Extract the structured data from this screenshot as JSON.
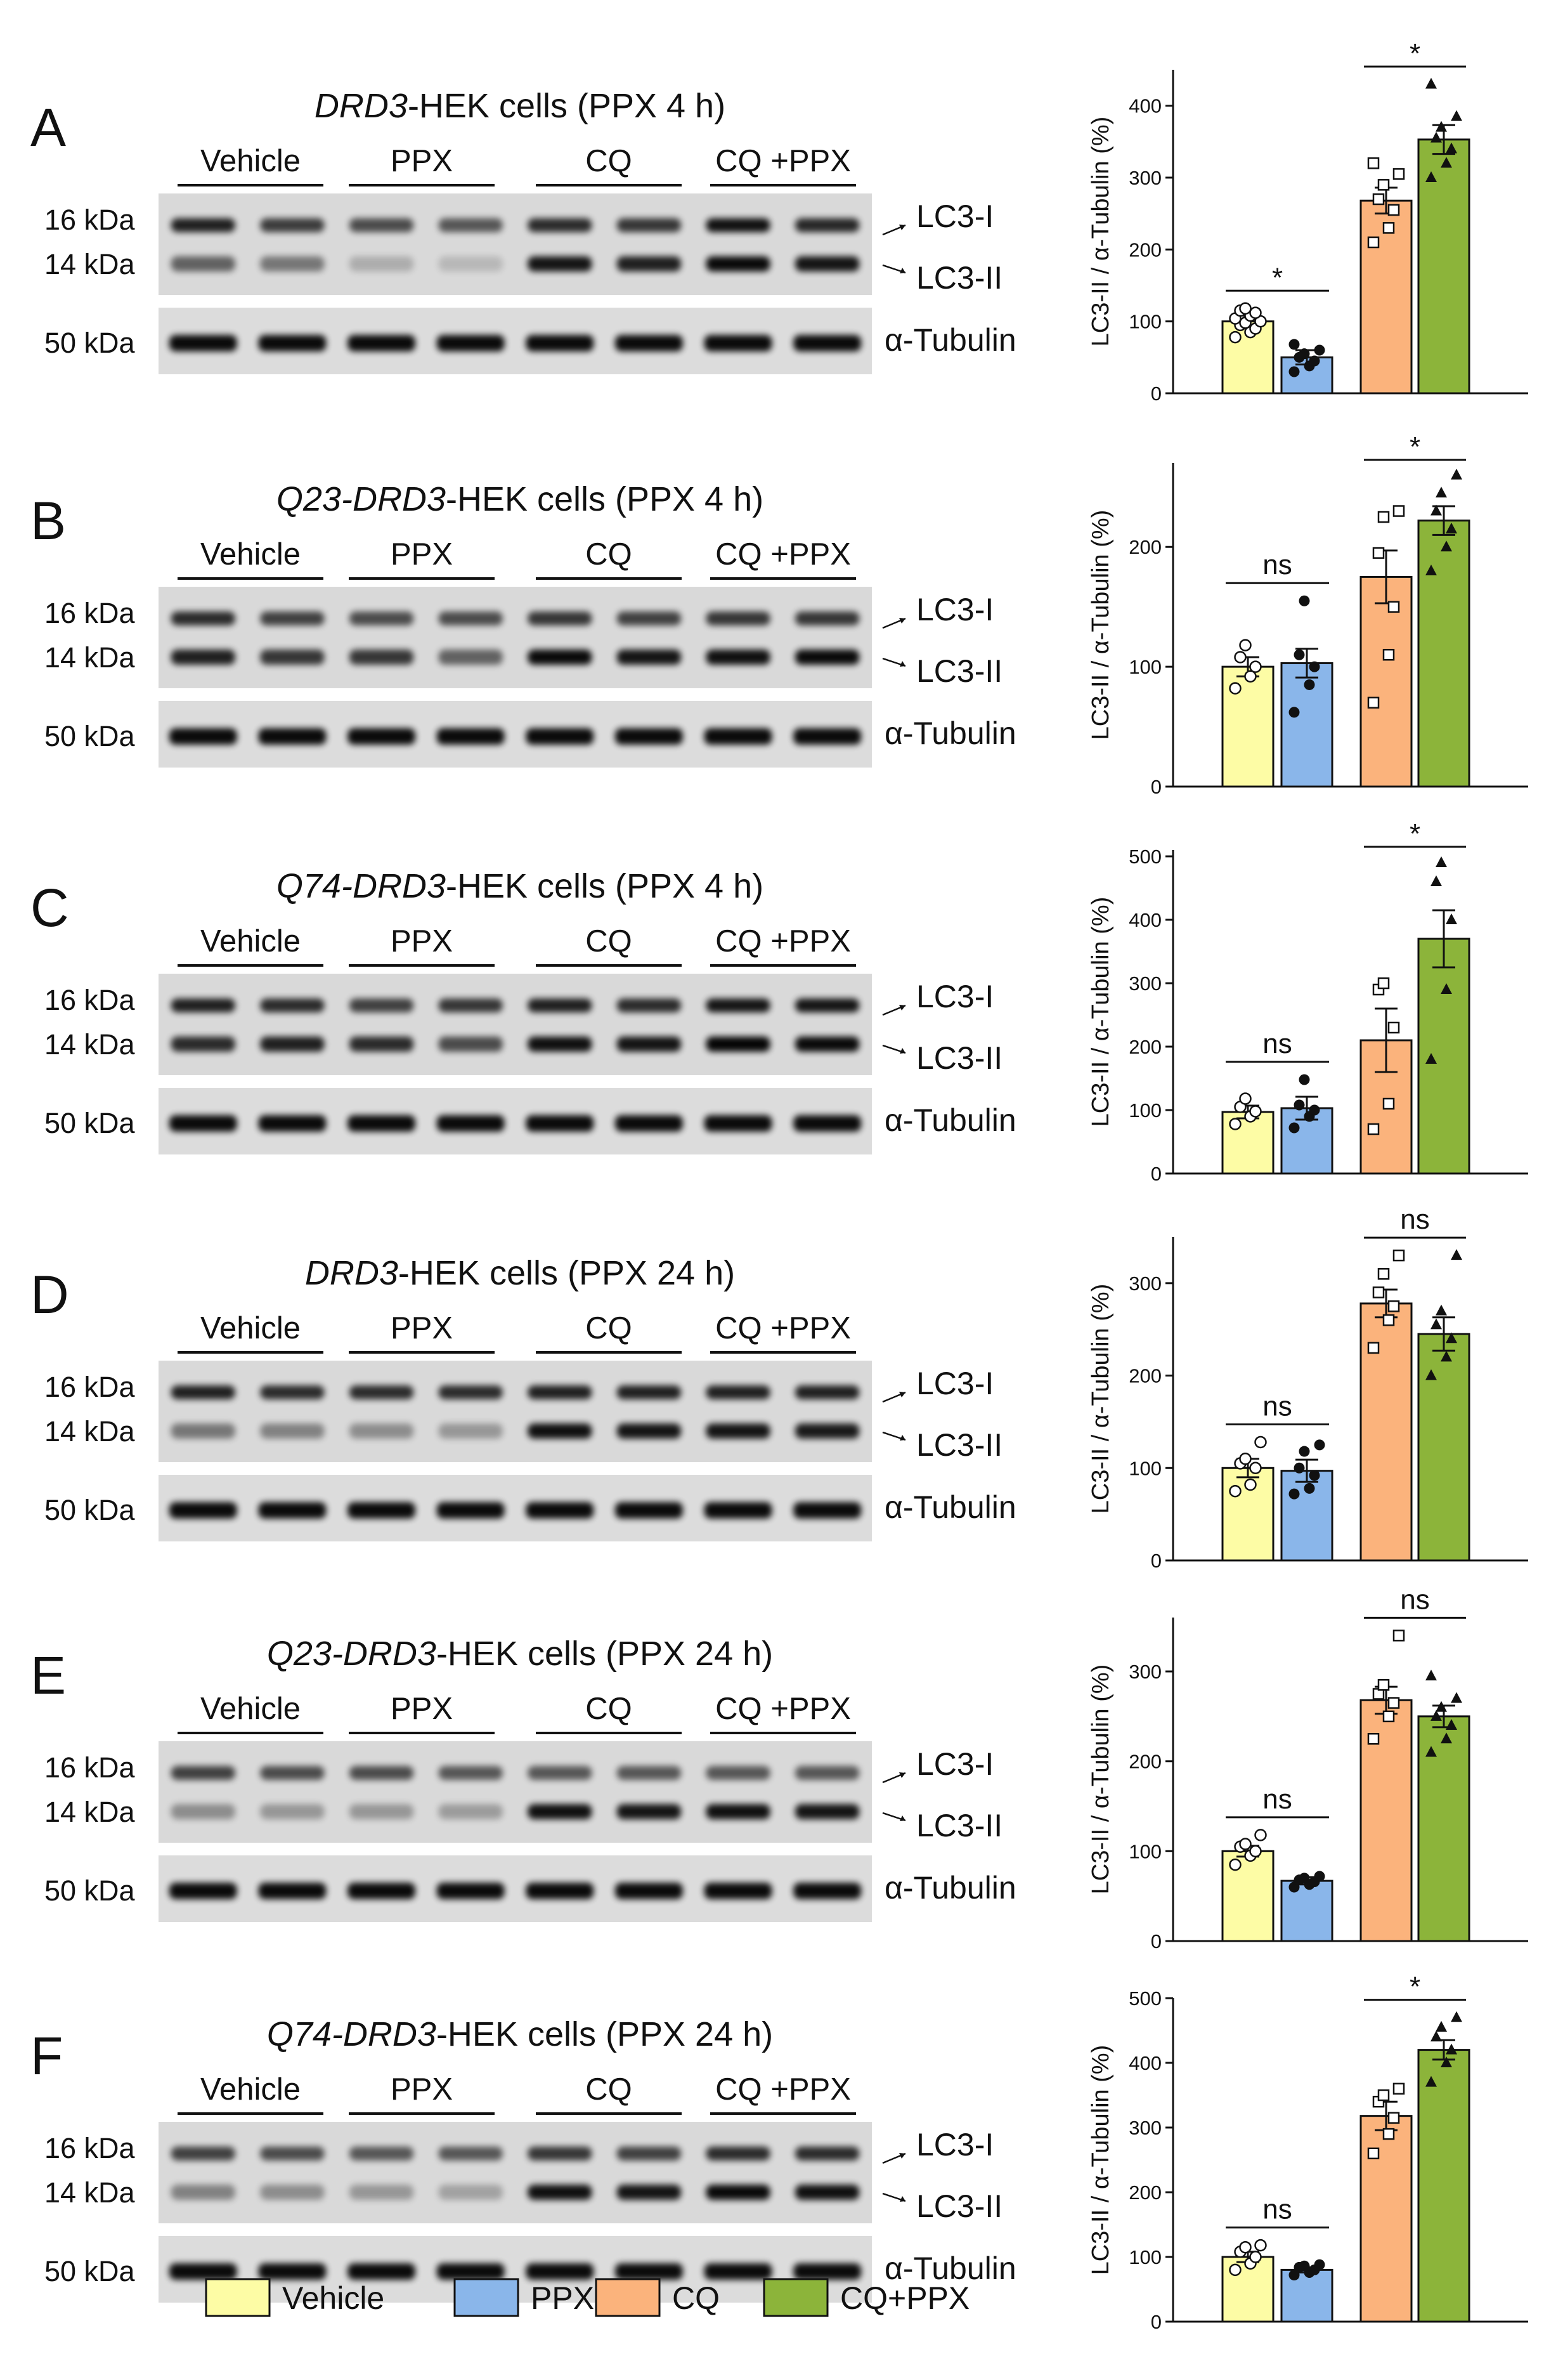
{
  "legend": [
    {
      "label": "Vehicle",
      "color": "#fdfca5"
    },
    {
      "label": "PPX",
      "color": "#8ab6ea"
    },
    {
      "label": "CQ",
      "color": "#fbb37c"
    },
    {
      "label": "CQ+PPX",
      "color": "#8cb43a"
    }
  ],
  "panels": [
    {
      "letter": "A",
      "title_italic": "DRD3",
      "title_rest": "-HEK cells (PPX 4 h)",
      "conditions": [
        "Vehicle",
        "PPX",
        "CQ",
        "CQ +PPX"
      ],
      "kda": [
        "16 kDa",
        "14 kDa",
        "50 kDa"
      ],
      "bands": [
        "LC3-I",
        "LC3-II",
        "α-Tubulin"
      ],
      "blot": {
        "lc3i": [
          0.85,
          0.72,
          0.65,
          0.6,
          0.8,
          0.75,
          0.92,
          0.82
        ],
        "lc3ii": [
          0.55,
          0.45,
          0.2,
          0.15,
          0.9,
          0.85,
          0.95,
          0.9
        ]
      }
    },
    {
      "letter": "B",
      "title_italic": "Q23-DRD3",
      "title_rest": "-HEK cells (PPX 4 h)",
      "conditions": [
        "Vehicle",
        "PPX",
        "CQ",
        "CQ +PPX"
      ],
      "kda": [
        "16 kDa",
        "14 kDa",
        "50 kDa"
      ],
      "bands": [
        "LC3-I",
        "LC3-II",
        "α-Tubulin"
      ],
      "blot": {
        "lc3i": [
          0.8,
          0.7,
          0.65,
          0.65,
          0.75,
          0.7,
          0.75,
          0.75
        ],
        "lc3ii": [
          0.85,
          0.75,
          0.75,
          0.55,
          0.95,
          0.9,
          0.92,
          0.95
        ]
      }
    },
    {
      "letter": "C",
      "title_italic": "Q74-DRD3",
      "title_rest": "-HEK cells (PPX 4 h)",
      "conditions": [
        "Vehicle",
        "PPX",
        "CQ",
        "CQ +PPX"
      ],
      "kda": [
        "16 kDa",
        "14 kDa",
        "50 kDa"
      ],
      "bands": [
        "LC3-I",
        "LC3-II",
        "α-Tubulin"
      ],
      "blot": {
        "lc3i": [
          0.85,
          0.8,
          0.7,
          0.75,
          0.85,
          0.8,
          0.9,
          0.9
        ],
        "lc3ii": [
          0.8,
          0.85,
          0.8,
          0.65,
          0.92,
          0.9,
          0.97,
          0.95
        ]
      }
    },
    {
      "letter": "D",
      "title_italic": "DRD3",
      "title_rest": "-HEK cells (PPX 24 h)",
      "conditions": [
        "Vehicle",
        "PPX",
        "CQ",
        "CQ +PPX"
      ],
      "kda": [
        "16 kDa",
        "14 kDa",
        "50 kDa"
      ],
      "bands": [
        "LC3-I",
        "LC3-II",
        "α-Tubulin"
      ],
      "blot": {
        "lc3i": [
          0.85,
          0.8,
          0.8,
          0.8,
          0.85,
          0.85,
          0.85,
          0.85
        ],
        "lc3ii": [
          0.45,
          0.4,
          0.35,
          0.3,
          0.92,
          0.9,
          0.9,
          0.88
        ]
      }
    },
    {
      "letter": "E",
      "title_italic": "Q23-DRD3",
      "title_rest": "-HEK cells (PPX 24 h)",
      "conditions": [
        "Vehicle",
        "PPX",
        "CQ",
        "CQ +PPX"
      ],
      "kda": [
        "16 kDa",
        "14 kDa",
        "50 kDa"
      ],
      "bands": [
        "LC3-I",
        "LC3-II",
        "α-Tubulin"
      ],
      "blot": {
        "lc3i": [
          0.7,
          0.65,
          0.65,
          0.6,
          0.6,
          0.6,
          0.6,
          0.6
        ],
        "lc3ii": [
          0.35,
          0.3,
          0.3,
          0.28,
          0.92,
          0.9,
          0.92,
          0.9
        ]
      }
    },
    {
      "letter": "F",
      "title_italic": "Q74-DRD3",
      "title_rest": "-HEK cells (PPX 24 h)",
      "conditions": [
        "Vehicle",
        "PPX",
        "CQ",
        "CQ +PPX"
      ],
      "kda": [
        "16 kDa",
        "14 kDa",
        "50 kDa"
      ],
      "bands": [
        "LC3-I",
        "LC3-II",
        "α-Tubulin"
      ],
      "blot": {
        "lc3i": [
          0.7,
          0.65,
          0.6,
          0.6,
          0.75,
          0.7,
          0.8,
          0.8
        ],
        "lc3ii": [
          0.4,
          0.35,
          0.3,
          0.25,
          0.92,
          0.9,
          0.95,
          0.92
        ]
      }
    }
  ],
  "chart_data": [
    {
      "type": "bar",
      "panel": "A",
      "categories": [
        "Vehicle",
        "PPX",
        "CQ",
        "CQ+PPX"
      ],
      "values": [
        100,
        50,
        268,
        353
      ],
      "errors": [
        8,
        10,
        18,
        20
      ],
      "points": [
        [
          78,
          85,
          90,
          95,
          98,
          100,
          104,
          108,
          112,
          115,
          118
        ],
        [
          30,
          38,
          45,
          50,
          55,
          60,
          68
        ],
        [
          210,
          230,
          255,
          270,
          290,
          305,
          320
        ],
        [
          300,
          320,
          340,
          355,
          370,
          385,
          430
        ]
      ],
      "ylabel": "LC3-II / α-Tubulin (%)",
      "yticks": [
        "0",
        "100",
        "200",
        "300",
        "400"
      ],
      "ylim": [
        0,
        450
      ],
      "comparisons": [
        {
          "pair": [
            0,
            1
          ],
          "label": "*"
        },
        {
          "pair": [
            2,
            3
          ],
          "label": "*"
        }
      ]
    },
    {
      "type": "bar",
      "panel": "B",
      "categories": [
        "Vehicle",
        "PPX",
        "CQ",
        "CQ+PPX"
      ],
      "values": [
        100,
        103,
        175,
        222
      ],
      "errors": [
        8,
        12,
        22,
        12
      ],
      "points": [
        [
          82,
          92,
          100,
          108,
          118
        ],
        [
          62,
          85,
          100,
          110,
          155
        ],
        [
          70,
          110,
          150,
          195,
          225,
          230
        ],
        [
          180,
          200,
          215,
          230,
          245,
          260
        ]
      ],
      "ylabel": "LC3-II / α-Tubulin (%)",
      "yticks": [
        "0",
        "100",
        "200"
      ],
      "ylim": [
        0,
        270
      ],
      "comparisons": [
        {
          "pair": [
            0,
            1
          ],
          "label": "ns"
        },
        {
          "pair": [
            2,
            3
          ],
          "label": "*"
        }
      ]
    },
    {
      "type": "bar",
      "panel": "C",
      "categories": [
        "Vehicle",
        "PPX",
        "CQ",
        "CQ+PPX"
      ],
      "values": [
        97,
        103,
        210,
        370
      ],
      "errors": [
        10,
        18,
        50,
        45
      ],
      "points": [
        [
          78,
          90,
          98,
          105,
          118
        ],
        [
          72,
          90,
          100,
          108,
          148
        ],
        [
          70,
          110,
          230,
          290,
          300
        ],
        [
          180,
          290,
          400,
          460,
          490
        ]
      ],
      "ylabel": "LC3-II / α-Tubulin (%)",
      "yticks": [
        "0",
        "100",
        "200",
        "300",
        "400",
        "500"
      ],
      "ylim": [
        0,
        510
      ],
      "comparisons": [
        {
          "pair": [
            0,
            1
          ],
          "label": "ns"
        },
        {
          "pair": [
            2,
            3
          ],
          "label": "*"
        }
      ]
    },
    {
      "type": "bar",
      "panel": "D",
      "categories": [
        "Vehicle",
        "PPX",
        "CQ",
        "CQ+PPX"
      ],
      "values": [
        100,
        97,
        278,
        245
      ],
      "errors": [
        10,
        12,
        15,
        18
      ],
      "points": [
        [
          75,
          82,
          100,
          105,
          110,
          128
        ],
        [
          72,
          78,
          92,
          100,
          118,
          125
        ],
        [
          230,
          260,
          275,
          290,
          310,
          330
        ],
        [
          200,
          220,
          240,
          255,
          270,
          330
        ]
      ],
      "ylabel": "LC3-II / α-Tubulin (%)",
      "yticks": [
        "0",
        "100",
        "200",
        "300"
      ],
      "ylim": [
        0,
        350
      ],
      "comparisons": [
        {
          "pair": [
            0,
            1
          ],
          "label": "ns"
        },
        {
          "pair": [
            2,
            3
          ],
          "label": "ns"
        }
      ]
    },
    {
      "type": "bar",
      "panel": "E",
      "categories": [
        "Vehicle",
        "PPX",
        "CQ",
        "CQ+PPX"
      ],
      "values": [
        100,
        67,
        268,
        250
      ],
      "errors": [
        6,
        4,
        15,
        12
      ],
      "points": [
        [
          85,
          95,
          100,
          105,
          108,
          118
        ],
        [
          60,
          63,
          66,
          68,
          70,
          72
        ],
        [
          225,
          250,
          265,
          275,
          285,
          340
        ],
        [
          210,
          225,
          240,
          250,
          260,
          270,
          295
        ]
      ],
      "ylabel": "LC3-II / α-Tubulin (%)",
      "yticks": [
        "0",
        "100",
        "200",
        "300"
      ],
      "ylim": [
        0,
        360
      ],
      "comparisons": [
        {
          "pair": [
            0,
            1
          ],
          "label": "ns"
        },
        {
          "pair": [
            2,
            3
          ],
          "label": "ns"
        }
      ]
    },
    {
      "type": "bar",
      "panel": "F",
      "categories": [
        "Vehicle",
        "PPX",
        "CQ",
        "CQ+PPX"
      ],
      "values": [
        100,
        80,
        318,
        420
      ],
      "errors": [
        8,
        4,
        22,
        15
      ],
      "points": [
        [
          80,
          90,
          100,
          108,
          115,
          118
        ],
        [
          72,
          76,
          80,
          84,
          86,
          88
        ],
        [
          260,
          290,
          315,
          340,
          350,
          360
        ],
        [
          370,
          400,
          420,
          440,
          455,
          470
        ]
      ],
      "ylabel": "LC3-II / α-Tubulin (%)",
      "yticks": [
        "0",
        "100",
        "200",
        "300",
        "400",
        "500"
      ],
      "ylim": [
        0,
        500
      ],
      "comparisons": [
        {
          "pair": [
            0,
            1
          ],
          "label": "ns"
        },
        {
          "pair": [
            2,
            3
          ],
          "label": "*"
        }
      ]
    }
  ]
}
